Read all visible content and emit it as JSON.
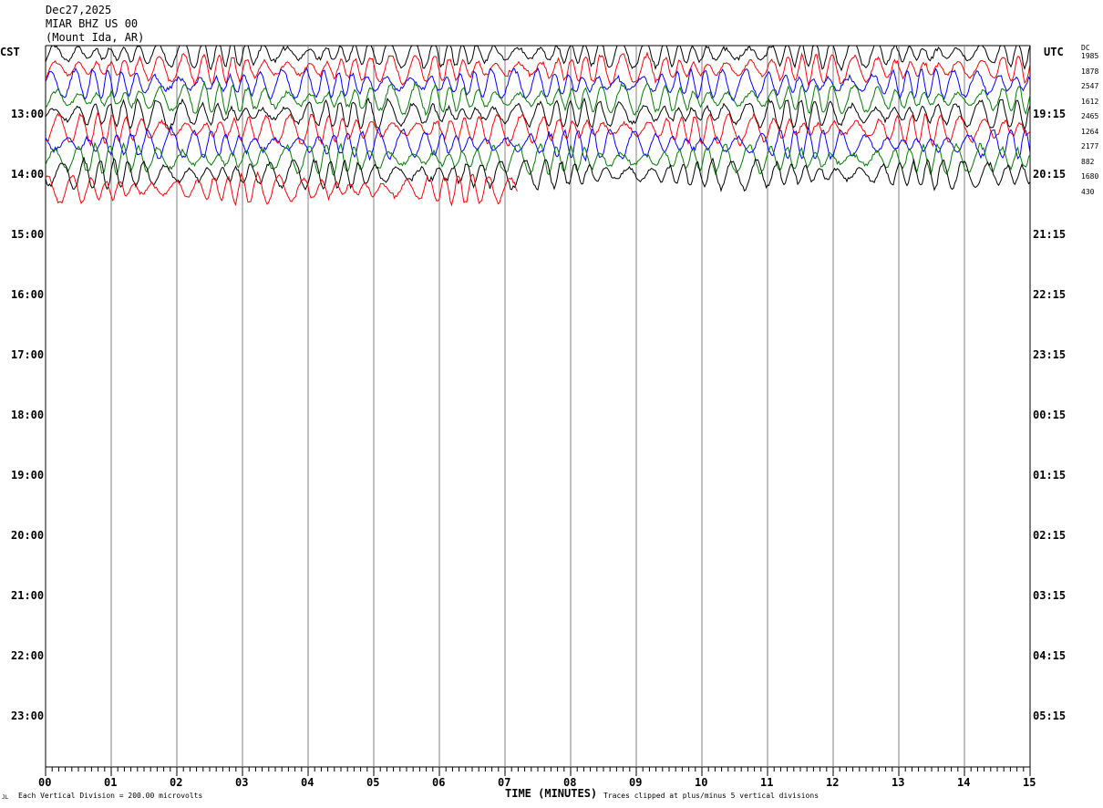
{
  "header": {
    "date": "Dec27,2025",
    "station": "MIAR BHZ US 00",
    "location": "(Mount Ida, AR)"
  },
  "left_zone": "CST",
  "right_zone": "UTC",
  "dc_label": "DC",
  "footer": {
    "scale_note": "Each Vertical Division =  200.00 microvolts",
    "clip_note": "Traces clipped at plus/minus 5 vertical divisions",
    "mark": "JL"
  },
  "chart_data": {
    "type": "line",
    "title": "MIAR BHZ US 00 (Mount Ida, AR) Dec27,2025",
    "xlabel": "TIME (MINUTES)",
    "xlim": [
      0,
      15
    ],
    "x_ticks": [
      "00",
      "01",
      "02",
      "03",
      "04",
      "05",
      "06",
      "07",
      "08",
      "09",
      "10",
      "11",
      "12",
      "13",
      "14",
      "15"
    ],
    "left_ticks": [
      "13:00",
      "14:00",
      "15:00",
      "16:00",
      "17:00",
      "18:00",
      "19:00",
      "20:00",
      "21:00",
      "22:00",
      "23:00"
    ],
    "right_ticks": [
      "19:15",
      "20:15",
      "21:15",
      "22:15",
      "23:15",
      "00:15",
      "01:15",
      "02:15",
      "03:15",
      "04:15",
      "05:15"
    ],
    "rows_per_hour": 4,
    "grid": "vertical-minutes",
    "trace_colors": [
      "#000000",
      "#ff0000",
      "#0000ff",
      "#008000"
    ],
    "traces": [
      {
        "row": 0,
        "color": "#000000",
        "dc": "1985",
        "end_minute": 15
      },
      {
        "row": 1,
        "color": "#ff0000",
        "dc": "1878",
        "end_minute": 15
      },
      {
        "row": 2,
        "color": "#0000ff",
        "dc": "2547",
        "end_minute": 15
      },
      {
        "row": 3,
        "color": "#008000",
        "dc": "1612",
        "end_minute": 15
      },
      {
        "row": 4,
        "color": "#000000",
        "dc": "2465",
        "end_minute": 15
      },
      {
        "row": 5,
        "color": "#ff0000",
        "dc": "1264",
        "end_minute": 15
      },
      {
        "row": 6,
        "color": "#0000ff",
        "dc": "2177",
        "end_minute": 15
      },
      {
        "row": 7,
        "color": "#008000",
        "dc": "882",
        "end_minute": 15
      },
      {
        "row": 8,
        "color": "#000000",
        "dc": "1680",
        "end_minute": 15
      },
      {
        "row": 9,
        "color": "#ff0000",
        "dc": "430",
        "end_minute": 7.2
      }
    ]
  }
}
